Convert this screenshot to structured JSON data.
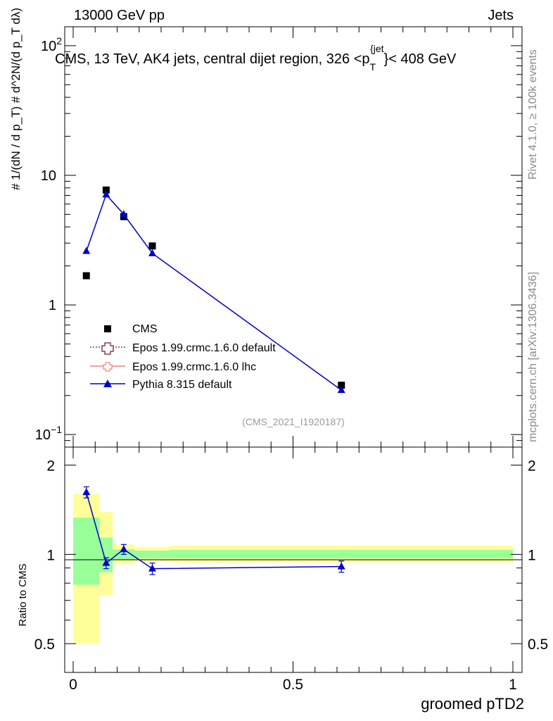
{
  "header": {
    "energy_label": "13000 GeV pp",
    "category_label": "Jets"
  },
  "side_labels": {
    "rivet": "Rivet 4.1.0, ≥ 100k events",
    "mcplots": "mcplots.cern.ch [arXiv:1306.3436]"
  },
  "chart_data": {
    "type": "line",
    "title": "CMS, 13 TeV, AK4 jets, central dijet region, 326 <p_T^{jet}< 408 GeV",
    "title_parts": {
      "main": "CMS, 13 TeV, AK4 jets, central dijet region, 326 <p",
      "sub": "T",
      "sup": "{jet",
      "tail": "}< 408 GeV"
    },
    "analysis_tag": "(CMS_2021_I1920187)",
    "xlabel": "groomed pTD2",
    "xlim": [
      0,
      1
    ],
    "x_ticks": [
      {
        "v": 0,
        "label": "0"
      },
      {
        "v": 0.5,
        "label": "0.5"
      },
      {
        "v": 1,
        "label": "1"
      }
    ],
    "main_panel": {
      "ylabel": "# 1/(dN / d p_T) # d^2N/(d p_T dλ)",
      "yscale": "log",
      "ylim": [
        0.08,
        140
      ],
      "y_ticks": [
        {
          "v": 0.1,
          "base": "10",
          "exp": "−1"
        },
        {
          "v": 1,
          "base": "1",
          "exp": ""
        },
        {
          "v": 10,
          "base": "10",
          "exp": ""
        },
        {
          "v": 100,
          "base": "10",
          "exp": "2"
        }
      ]
    },
    "ratio_panel": {
      "ylabel": "Ratio to CMS",
      "yscale": "log",
      "ylim": [
        0.4,
        2.3
      ],
      "y_ticks": [
        {
          "v": 0.5,
          "label": "0.5"
        },
        {
          "v": 1,
          "label": "1"
        },
        {
          "v": 2,
          "label": "2"
        }
      ],
      "bands": [
        {
          "x0": 0.0,
          "x1": 0.06,
          "y_lo": 0.5,
          "y_hi": 1.6,
          "y_lo_in": 0.79,
          "y_hi_in": 1.33
        },
        {
          "x0": 0.06,
          "x1": 0.09,
          "y_lo": 0.73,
          "y_hi": 1.39,
          "y_lo_in": 0.87,
          "y_hi_in": 1.14
        },
        {
          "x0": 0.09,
          "x1": 0.14,
          "y_lo": 0.93,
          "y_hi": 1.08,
          "y_lo_in": 0.96,
          "y_hi_in": 1.04
        },
        {
          "x0": 0.14,
          "x1": 0.22,
          "y_lo": 0.95,
          "y_hi": 1.06,
          "y_lo_in": 0.97,
          "y_hi_in": 1.03
        },
        {
          "x0": 0.22,
          "x1": 1.0,
          "y_lo": 0.94,
          "y_hi": 1.07,
          "y_lo_in": 0.97,
          "y_hi_in": 1.035
        }
      ],
      "series": [
        {
          "name": "Pythia 8.315 default",
          "x": [
            0.03,
            0.075,
            0.115,
            0.18,
            0.61
          ],
          "values": [
            1.62,
            0.935,
            1.04,
            0.895,
            0.91
          ],
          "err": [
            0.07,
            0.04,
            0.04,
            0.04,
            0.04
          ]
        }
      ]
    },
    "series": [
      {
        "name": "CMS",
        "style": "square",
        "color": "#000000",
        "x": [
          0.03,
          0.075,
          0.115,
          0.18,
          0.61
        ],
        "values": [
          1.68,
          7.7,
          4.8,
          2.85,
          0.24
        ]
      },
      {
        "name": "Epos 1.99.crmc.1.6.0 default",
        "style": "dotted-open-cross",
        "color": "#8b3a62",
        "x": [],
        "values": []
      },
      {
        "name": "Epos 1.99.crmc.1.6.0 lhc",
        "style": "solid-open-cross",
        "color": "#f08080",
        "x": [],
        "values": []
      },
      {
        "name": "Pythia 8.315 default",
        "style": "triangle-line",
        "color": "#0000cc",
        "x": [
          0.03,
          0.075,
          0.115,
          0.18,
          0.61
        ],
        "values": [
          2.6,
          7.1,
          5.0,
          2.5,
          0.22
        ]
      }
    ],
    "legend_placement": "lower-left"
  }
}
